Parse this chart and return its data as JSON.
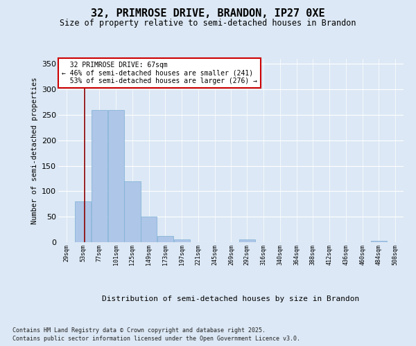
{
  "title_line1": "32, PRIMROSE DRIVE, BRANDON, IP27 0XE",
  "title_line2": "Size of property relative to semi-detached houses in Brandon",
  "xlabel": "Distribution of semi-detached houses by size in Brandon",
  "ylabel": "Number of semi-detached properties",
  "footer_line1": "Contains HM Land Registry data © Crown copyright and database right 2025.",
  "footer_line2": "Contains public sector information licensed under the Open Government Licence v3.0.",
  "bin_labels": [
    "29sqm",
    "53sqm",
    "77sqm",
    "101sqm",
    "125sqm",
    "149sqm",
    "173sqm",
    "197sqm",
    "221sqm",
    "245sqm",
    "269sqm",
    "292sqm",
    "316sqm",
    "340sqm",
    "364sqm",
    "388sqm",
    "412sqm",
    "436sqm",
    "460sqm",
    "484sqm",
    "508sqm"
  ],
  "bin_edges": [
    29,
    53,
    77,
    101,
    125,
    149,
    173,
    197,
    221,
    245,
    269,
    292,
    316,
    340,
    364,
    388,
    412,
    436,
    460,
    484,
    508
  ],
  "bar_heights": [
    0,
    80,
    260,
    260,
    120,
    50,
    12,
    5,
    0,
    0,
    0,
    5,
    0,
    0,
    0,
    0,
    0,
    0,
    0,
    3,
    0
  ],
  "bar_color": "#aec6e8",
  "bar_edgecolor": "#7aafd4",
  "property_size": 67,
  "property_size_label": "32 PRIMROSE DRIVE: 67sqm",
  "vline_color": "#8b0000",
  "pct_smaller": 46,
  "count_smaller": 241,
  "pct_larger": 53,
  "count_larger": 276,
  "annotation_box_edgecolor": "#cc0000",
  "ylim": [
    0,
    360
  ],
  "yticks": [
    0,
    50,
    100,
    150,
    200,
    250,
    300,
    350
  ],
  "background_color": "#dce8f5",
  "plot_bg_color": "#dce8f5"
}
